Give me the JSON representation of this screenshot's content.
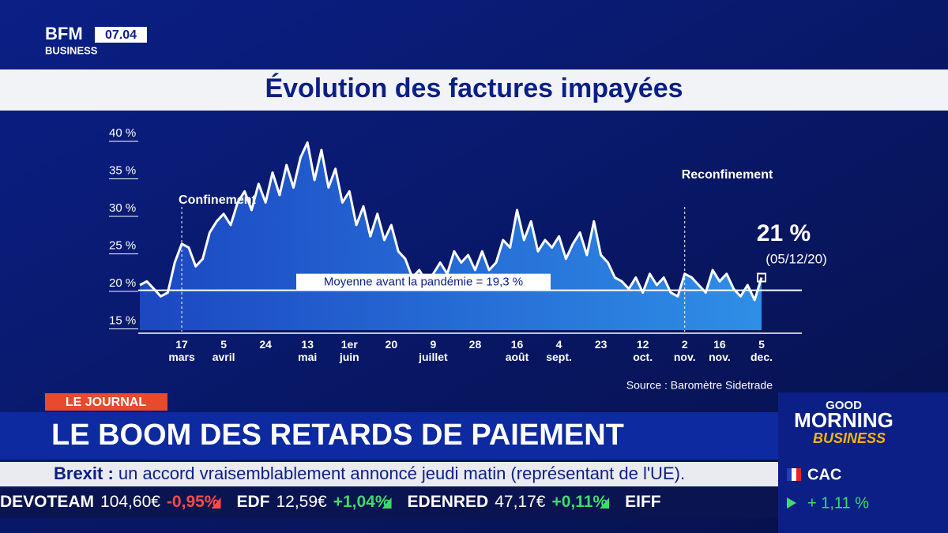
{
  "chart_data": {
    "type": "line",
    "title": "Évolution des factures impayées",
    "categories": [
      null,
      null,
      null,
      null,
      null,
      null,
      "17 mars",
      null,
      null,
      null,
      null,
      null,
      "5 avril",
      null,
      null,
      null,
      null,
      null,
      "24",
      null,
      null,
      null,
      null,
      null,
      "13 mai",
      null,
      null,
      null,
      null,
      null,
      "1er juin",
      null,
      null,
      null,
      null,
      null,
      "20",
      null,
      null,
      null,
      null,
      null,
      "9 juillet",
      null,
      null,
      null,
      null,
      null,
      "28",
      null,
      null,
      null,
      null,
      null,
      "16 août",
      null,
      null,
      null,
      null,
      null,
      "4 sept.",
      null,
      null,
      null,
      null,
      null,
      "23",
      null,
      null,
      null,
      null,
      null,
      "12 oct.",
      null,
      null,
      null,
      null,
      null,
      "2 nov.",
      null,
      null,
      null,
      null,
      "16 nov.",
      null,
      null,
      null,
      null,
      null,
      "5 dec."
    ],
    "values": [
      20,
      20.5,
      19.5,
      18.5,
      19,
      23,
      25.5,
      25,
      22.5,
      23.5,
      27,
      28.5,
      29.5,
      28,
      31,
      32.5,
      30,
      33.5,
      31,
      35,
      32,
      36,
      33,
      37,
      39,
      34,
      38,
      33,
      35.5,
      31,
      32.5,
      28,
      30.5,
      26.5,
      29.5,
      26,
      28,
      24.5,
      23.5,
      21,
      22,
      20.5,
      21.5,
      23,
      21.5,
      24.5,
      23,
      24,
      22,
      24.5,
      22,
      23,
      26,
      25,
      30,
      26,
      28.5,
      24.5,
      26,
      25,
      26.5,
      23.5,
      25.5,
      27,
      24,
      28.5,
      24,
      23,
      21,
      20.5,
      19.5,
      21,
      19,
      21.5,
      20,
      21,
      19,
      18.5,
      21.5,
      21,
      20,
      19,
      22,
      20.5,
      21.5,
      19.5,
      18.5,
      20,
      18,
      21
    ],
    "color": "#ffffff",
    "ylim": [
      14,
      40
    ],
    "yticks": [
      {
        "value": 15,
        "label": "15 %"
      },
      {
        "value": 20,
        "label": "20 %"
      },
      {
        "value": 25,
        "label": "25 %"
      },
      {
        "value": 30,
        "label": "30 %"
      },
      {
        "value": 35,
        "label": "35 %"
      },
      {
        "value": 40,
        "label": "40 %"
      }
    ],
    "reference_line": {
      "value": 19.3,
      "label": "Moyenne avant la pandémie = 19,3 %"
    },
    "annotations": [
      {
        "text": "Confinement",
        "x": "17 mars"
      },
      {
        "text": "Reconfinement",
        "x": "2 nov."
      }
    ],
    "last_value_label": {
      "label": "21 %",
      "date": "(05/12/20)"
    },
    "source": "Source : Baromètre Sidetrade"
  },
  "broadcast": {
    "channel": "BFM",
    "channel_sub": "BUSINESS",
    "time": "07.04",
    "rubric": "LE JOURNAL",
    "headline": "LE BOOM DES RETARDS DE PAIEMENT",
    "news_key": "Brexit :",
    "news_text": "un accord vraisemblablement annoncé jeudi matin (représentant de l'UE).",
    "ticker": [
      {
        "name": "DEVOTEAM",
        "price": "104,60€",
        "change": "-0,95%",
        "up": false
      },
      {
        "name": "EDF",
        "price": "12,59€",
        "change": "+1,04%",
        "up": true
      },
      {
        "name": "EDENRED",
        "price": "47,17€",
        "change": "+0,11%",
        "up": true
      },
      {
        "name": "EIFF",
        "price": "",
        "change": "",
        "up": true
      }
    ],
    "show": [
      "GOOD",
      "MORNING",
      "BUSINESS"
    ],
    "index_name": "CAC",
    "index_change": "+ 1,11 %"
  }
}
